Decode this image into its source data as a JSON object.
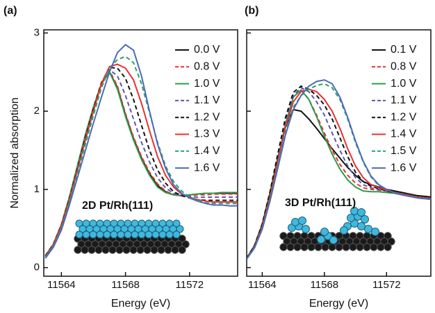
{
  "chart_data": [
    {
      "type": "line",
      "panel_label": "(a)",
      "xlabel": "Energy (eV)",
      "ylabel": "Normalized absorption",
      "annotation": "2D Pt/Rh(111)",
      "xlim": [
        11562.9,
        11575
      ],
      "ylim": [
        -0.11,
        3.04
      ],
      "xticks": [
        11564,
        11568,
        11572
      ],
      "yticks": [
        0,
        1,
        2,
        3
      ],
      "ytick_labels": true,
      "x": [
        11563,
        11563.5,
        11564,
        11564.5,
        11565,
        11565.5,
        11566,
        11566.5,
        11567,
        11567.5,
        11568,
        11568.5,
        11569,
        11569.5,
        11570,
        11570.5,
        11571,
        11571.5,
        11572,
        11572.5,
        11573,
        11573.5,
        11574,
        11574.5,
        11575
      ],
      "series": [
        {
          "name": "0.0 V",
          "color": "#111111",
          "dash": false,
          "values": [
            0.15,
            0.3,
            0.55,
            0.9,
            1.3,
            1.7,
            2.05,
            2.35,
            2.5,
            2.3,
            1.95,
            1.65,
            1.4,
            1.2,
            1.05,
            0.97,
            0.93,
            0.92,
            0.93,
            0.94,
            0.95,
            0.95,
            0.95,
            0.95,
            0.95
          ]
        },
        {
          "name": "0.8 V",
          "color": "#e8312f",
          "dash": true,
          "values": [
            0.15,
            0.3,
            0.55,
            0.9,
            1.3,
            1.7,
            2.05,
            2.37,
            2.52,
            2.32,
            1.97,
            1.67,
            1.42,
            1.22,
            1.07,
            0.98,
            0.93,
            0.92,
            0.92,
            0.93,
            0.93,
            0.94,
            0.94,
            0.94,
            0.94
          ]
        },
        {
          "name": "1.0 V",
          "color": "#2e9a4a",
          "dash": false,
          "values": [
            0.15,
            0.3,
            0.55,
            0.9,
            1.3,
            1.7,
            2.05,
            2.35,
            2.5,
            2.28,
            1.93,
            1.63,
            1.38,
            1.18,
            1.03,
            0.96,
            0.93,
            0.92,
            0.93,
            0.94,
            0.95,
            0.95,
            0.96,
            0.96,
            0.96
          ]
        },
        {
          "name": "1.1 V",
          "color": "#5b55b5",
          "dash": true,
          "values": [
            0.15,
            0.3,
            0.54,
            0.88,
            1.27,
            1.67,
            2.03,
            2.35,
            2.53,
            2.45,
            2.2,
            1.9,
            1.6,
            1.35,
            1.15,
            1.02,
            0.95,
            0.92,
            0.91,
            0.9,
            0.9,
            0.9,
            0.9,
            0.9,
            0.9
          ]
        },
        {
          "name": "1.2 V",
          "color": "#111111",
          "dash": true,
          "values": [
            0.15,
            0.3,
            0.54,
            0.88,
            1.26,
            1.66,
            2.03,
            2.36,
            2.56,
            2.55,
            2.42,
            2.15,
            1.82,
            1.5,
            1.25,
            1.08,
            0.97,
            0.92,
            0.89,
            0.87,
            0.86,
            0.86,
            0.86,
            0.86,
            0.86
          ]
        },
        {
          "name": "1.3 V",
          "color": "#e8312f",
          "dash": false,
          "values": [
            0.14,
            0.29,
            0.53,
            0.86,
            1.24,
            1.63,
            2.0,
            2.35,
            2.57,
            2.6,
            2.55,
            2.4,
            2.1,
            1.75,
            1.42,
            1.18,
            1.03,
            0.94,
            0.9,
            0.87,
            0.85,
            0.84,
            0.84,
            0.84,
            0.84
          ]
        },
        {
          "name": "1.4 V",
          "color": "#2aa06a",
          "dash": true,
          "values": [
            0.13,
            0.28,
            0.5,
            0.83,
            1.2,
            1.58,
            1.95,
            2.3,
            2.55,
            2.66,
            2.7,
            2.62,
            2.35,
            1.98,
            1.6,
            1.3,
            1.1,
            0.98,
            0.9,
            0.86,
            0.83,
            0.82,
            0.82,
            0.82,
            0.82
          ]
        },
        {
          "name": "1.6 V",
          "color": "#4a6bb5",
          "dash": false,
          "values": [
            0.12,
            0.26,
            0.48,
            0.8,
            1.15,
            1.5,
            1.85,
            2.18,
            2.5,
            2.75,
            2.85,
            2.78,
            2.45,
            2.0,
            1.58,
            1.27,
            1.06,
            0.95,
            0.89,
            0.85,
            0.82,
            0.8,
            0.8,
            0.79,
            0.79
          ]
        }
      ]
    },
    {
      "type": "line",
      "panel_label": "(b)",
      "xlabel": "Energy (eV)",
      "annotation": "3D Pt/Rh(111)",
      "xlim": [
        11563.0,
        11574.85
      ],
      "ylim": [
        -0.11,
        3.04
      ],
      "xticks": [
        11564,
        11568,
        11572
      ],
      "yticks": [
        0,
        1,
        2,
        3
      ],
      "ytick_labels": false,
      "x": [
        11563,
        11563.5,
        11564,
        11564.5,
        11565,
        11565.5,
        11566,
        11566.5,
        11567,
        11567.5,
        11568,
        11568.5,
        11569,
        11569.5,
        11570,
        11570.5,
        11571,
        11571.5,
        11572,
        11572.5,
        11573,
        11573.5,
        11574,
        11574.5,
        11575
      ],
      "series": [
        {
          "name": "0.1 V",
          "color": "#111111",
          "dash": false,
          "values": [
            0.12,
            0.28,
            0.55,
            0.95,
            1.4,
            1.8,
            2.02,
            2.0,
            1.9,
            1.78,
            1.65,
            1.52,
            1.4,
            1.28,
            1.18,
            1.1,
            1.06,
            1.03,
            1.0,
            0.98,
            0.96,
            0.94,
            0.92,
            0.91,
            0.9
          ]
        },
        {
          "name": "0.8 V",
          "color": "#e8312f",
          "dash": true,
          "values": [
            0.12,
            0.28,
            0.55,
            0.95,
            1.42,
            1.88,
            2.2,
            2.28,
            2.15,
            1.95,
            1.72,
            1.5,
            1.32,
            1.18,
            1.08,
            1.02,
            1.0,
            0.99,
            0.98,
            0.96,
            0.94,
            0.92,
            0.9,
            0.89,
            0.88
          ]
        },
        {
          "name": "1.0 V",
          "color": "#2e9a4a",
          "dash": false,
          "values": [
            0.12,
            0.27,
            0.53,
            0.92,
            1.38,
            1.84,
            2.18,
            2.27,
            2.15,
            1.93,
            1.68,
            1.45,
            1.26,
            1.12,
            1.03,
            0.98,
            0.97,
            0.97,
            0.96,
            0.95,
            0.93,
            0.91,
            0.9,
            0.89,
            0.88
          ]
        },
        {
          "name": "1.1 V",
          "color": "#5b55b5",
          "dash": true,
          "values": [
            0.12,
            0.28,
            0.55,
            0.95,
            1.42,
            1.88,
            2.2,
            2.3,
            2.25,
            2.12,
            1.95,
            1.72,
            1.5,
            1.3,
            1.15,
            1.06,
            1.02,
            1.0,
            0.98,
            0.96,
            0.94,
            0.92,
            0.9,
            0.89,
            0.88
          ]
        },
        {
          "name": "1.2 V",
          "color": "#111111",
          "dash": true,
          "values": [
            0.12,
            0.28,
            0.56,
            0.97,
            1.45,
            1.92,
            2.24,
            2.32,
            2.28,
            2.2,
            2.08,
            1.9,
            1.66,
            1.42,
            1.22,
            1.1,
            1.04,
            1.01,
            0.98,
            0.96,
            0.94,
            0.92,
            0.9,
            0.89,
            0.88
          ]
        },
        {
          "name": "1.4 V",
          "color": "#e8312f",
          "dash": false,
          "values": [
            0.11,
            0.26,
            0.52,
            0.9,
            1.35,
            1.8,
            2.12,
            2.25,
            2.28,
            2.25,
            2.15,
            2.0,
            1.78,
            1.52,
            1.3,
            1.15,
            1.06,
            1.02,
            0.99,
            0.96,
            0.94,
            0.92,
            0.9,
            0.89,
            0.88
          ]
        },
        {
          "name": "1.5 V",
          "color": "#2aa06a",
          "dash": true,
          "values": [
            0.11,
            0.25,
            0.5,
            0.87,
            1.3,
            1.74,
            2.05,
            2.2,
            2.28,
            2.33,
            2.35,
            2.3,
            2.15,
            1.9,
            1.6,
            1.35,
            1.16,
            1.05,
            1.0,
            0.96,
            0.93,
            0.91,
            0.89,
            0.88,
            0.87
          ]
        },
        {
          "name": "1.6 V",
          "color": "#4a6bb5",
          "dash": false,
          "values": [
            0.11,
            0.25,
            0.49,
            0.85,
            1.27,
            1.7,
            2.02,
            2.2,
            2.32,
            2.38,
            2.4,
            2.35,
            2.18,
            1.92,
            1.62,
            1.36,
            1.17,
            1.06,
            1.0,
            0.96,
            0.93,
            0.91,
            0.89,
            0.88,
            0.87
          ]
        }
      ]
    }
  ]
}
